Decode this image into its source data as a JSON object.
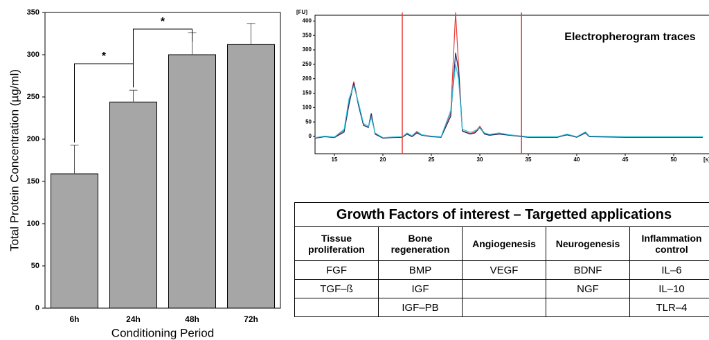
{
  "chart_data": [
    {
      "type": "bar",
      "categories": [
        "6h",
        "24h",
        "48h",
        "72h"
      ],
      "values": [
        159,
        244,
        300,
        312
      ],
      "errors": [
        34,
        14,
        26,
        25
      ],
      "color": "#a6a6a6",
      "ylim": [
        0,
        350
      ],
      "yticks": [
        0,
        50,
        100,
        150,
        200,
        250,
        300,
        350
      ],
      "xlabel": "Conditioning Period",
      "ylabel": "Total Protein Concentration (µg/ml)",
      "annotations": [
        "*",
        "*"
      ]
    },
    {
      "type": "line",
      "title": "Electropherogram traces",
      "ylabel": "[FU]",
      "xlabel": "[s]",
      "x": [
        13,
        14,
        15,
        16,
        16.5,
        17,
        17.5,
        18,
        18.5,
        18.8,
        19.2,
        20,
        21,
        22,
        22.5,
        23,
        23.5,
        24,
        25,
        26,
        27,
        27.5,
        27.8,
        28.2,
        29,
        29.5,
        30,
        30.5,
        31,
        32,
        33,
        35,
        38,
        39,
        40,
        40.9,
        41.3,
        45,
        50,
        53
      ],
      "series": [
        {
          "color": "#e53935",
          "values": [
            -5,
            0,
            -3,
            20,
            120,
            190,
            110,
            40,
            30,
            70,
            10,
            -5,
            -3,
            -2,
            10,
            0,
            15,
            5,
            0,
            -2,
            80,
            430,
            250,
            20,
            10,
            15,
            35,
            10,
            5,
            10,
            5,
            -2,
            -2,
            5,
            -2,
            15,
            0,
            -2,
            -2,
            -2
          ]
        },
        {
          "color": "#1f2a6b",
          "values": [
            -6,
            -1,
            -4,
            15,
            110,
            185,
            105,
            38,
            32,
            80,
            8,
            -6,
            -4,
            -3,
            8,
            -1,
            12,
            4,
            -1,
            -3,
            70,
            290,
            230,
            18,
            8,
            12,
            30,
            8,
            4,
            8,
            4,
            -3,
            -3,
            6,
            -3,
            12,
            -1,
            -3,
            -3,
            -3
          ]
        },
        {
          "color": "#26c6da",
          "values": [
            -4,
            1,
            -2,
            25,
            130,
            175,
            115,
            45,
            35,
            65,
            12,
            -4,
            -2,
            -1,
            12,
            2,
            18,
            6,
            1,
            -1,
            90,
            250,
            200,
            25,
            14,
            20,
            28,
            12,
            7,
            12,
            6,
            -1,
            -1,
            8,
            -1,
            16,
            1,
            -1,
            -1,
            -1
          ]
        }
      ],
      "xlim": [
        13,
        53
      ],
      "ylim": [
        -60,
        420
      ],
      "xticks": [
        15,
        20,
        25,
        30,
        35,
        40,
        45,
        50
      ],
      "yticks": [
        0,
        50,
        100,
        150,
        200,
        250,
        300,
        350,
        400
      ],
      "vlines": [
        22,
        34.3
      ],
      "vline_color": "#e53935"
    }
  ],
  "table": {
    "title": "Growth Factors of interest – Targetted applications",
    "header": [
      "Tissue proliferation",
      "Bone regeneration",
      "Angiogenesis",
      "Neurogenesis",
      "Inflammation control"
    ],
    "rows": [
      [
        "FGF",
        "BMP",
        "VEGF",
        "BDNF",
        "IL–6"
      ],
      [
        "TGF–ß",
        "IGF",
        null,
        "NGF",
        "IL–10"
      ],
      [
        null,
        "IGF–PB",
        null,
        null,
        "TLR–4"
      ]
    ]
  }
}
